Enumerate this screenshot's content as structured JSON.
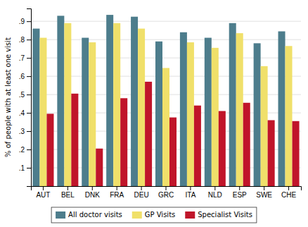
{
  "chart_data": {
    "type": "bar",
    "categories": [
      "AUT",
      "BEL",
      "DNK",
      "FRA",
      "DEU",
      "GRC",
      "ITA",
      "NLD",
      "ESP",
      "SWE",
      "CHE"
    ],
    "series": [
      {
        "name": "All doctor visits",
        "color": "#4d7d8c",
        "values": [
          0.86,
          0.93,
          0.81,
          0.935,
          0.925,
          0.79,
          0.84,
          0.81,
          0.89,
          0.78,
          0.845
        ]
      },
      {
        "name": "GP Visits",
        "color": "#f0e06a",
        "values": [
          0.81,
          0.89,
          0.785,
          0.89,
          0.86,
          0.645,
          0.785,
          0.755,
          0.835,
          0.655,
          0.765
        ]
      },
      {
        "name": "Specialist Visits",
        "color": "#c0152a",
        "values": [
          0.395,
          0.505,
          0.205,
          0.48,
          0.57,
          0.375,
          0.44,
          0.41,
          0.455,
          0.36,
          0.355
        ]
      }
    ],
    "ylabel": "% of people with at least one visit",
    "ylim": [
      0.0,
      0.97
    ],
    "yticks": [
      {
        "value": 0.1,
        "label": ".1"
      },
      {
        "value": 0.2,
        "label": ".2"
      },
      {
        "value": 0.3,
        "label": ".3"
      },
      {
        "value": 0.4,
        "label": ".4"
      },
      {
        "value": 0.5,
        "label": ".5"
      },
      {
        "value": 0.6,
        "label": ".6"
      },
      {
        "value": 0.7,
        "label": ".7"
      },
      {
        "value": 0.8,
        "label": ".8"
      },
      {
        "value": 0.9,
        "label": ".9"
      }
    ],
    "grid": true,
    "legend": "bottom"
  }
}
